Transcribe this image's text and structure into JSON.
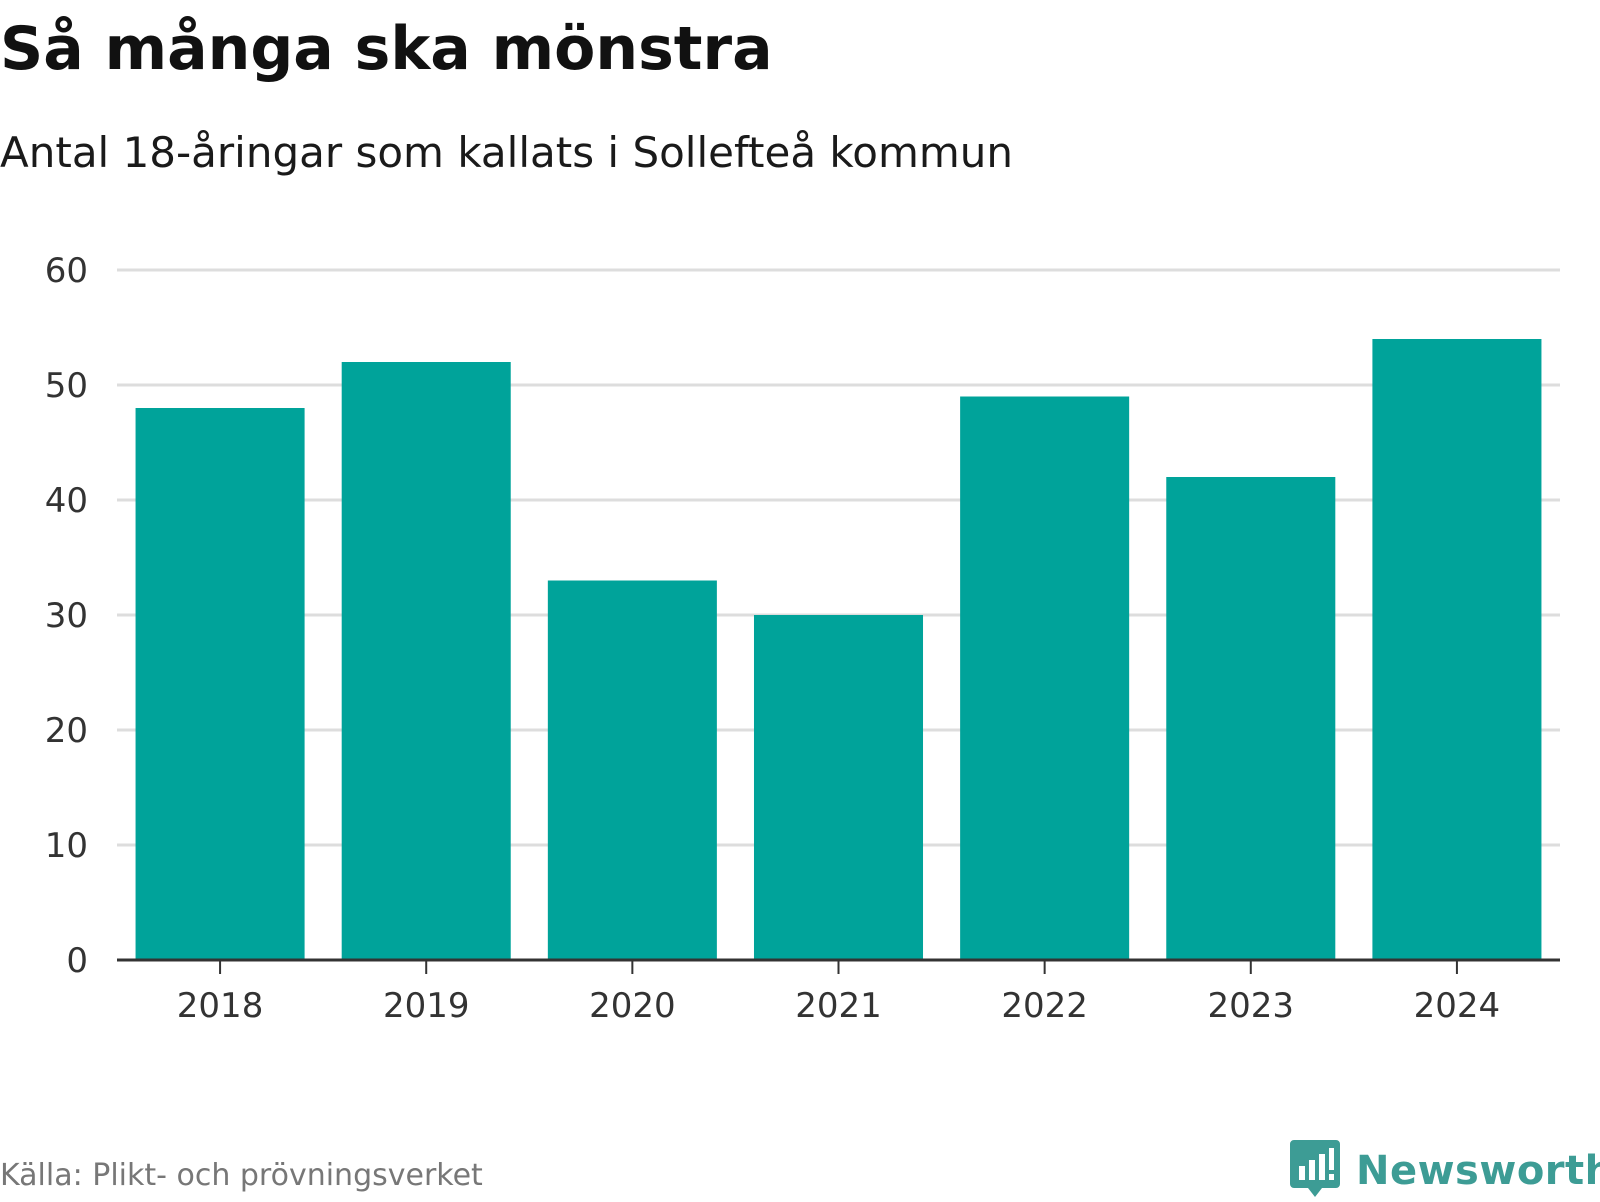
{
  "header": {
    "title": "Så många ska mönstra",
    "subtitle": "Antal 18-åringar som kallats i Sollefteå kommun"
  },
  "footer": {
    "source": "Källa: Plikt- och prövningsverket",
    "brand": "Newsworthy",
    "brand_icon": "bar-chart-speech-bubble-icon"
  },
  "colors": {
    "bar": "#00a39a",
    "grid": "#dddddd",
    "axis": "#333333",
    "brand": "#3d9c95"
  },
  "chart_data": {
    "type": "bar",
    "title": "Så många ska mönstra",
    "subtitle": "Antal 18-åringar som kallats i Sollefteå kommun",
    "xlabel": "",
    "ylabel": "",
    "categories": [
      "2018",
      "2019",
      "2020",
      "2021",
      "2022",
      "2023",
      "2024"
    ],
    "values": [
      48,
      52,
      33,
      30,
      49,
      42,
      54
    ],
    "ylim": [
      0,
      60
    ],
    "yticks": [
      0,
      10,
      20,
      30,
      40,
      50,
      60
    ],
    "grid": true,
    "legend": "none"
  }
}
